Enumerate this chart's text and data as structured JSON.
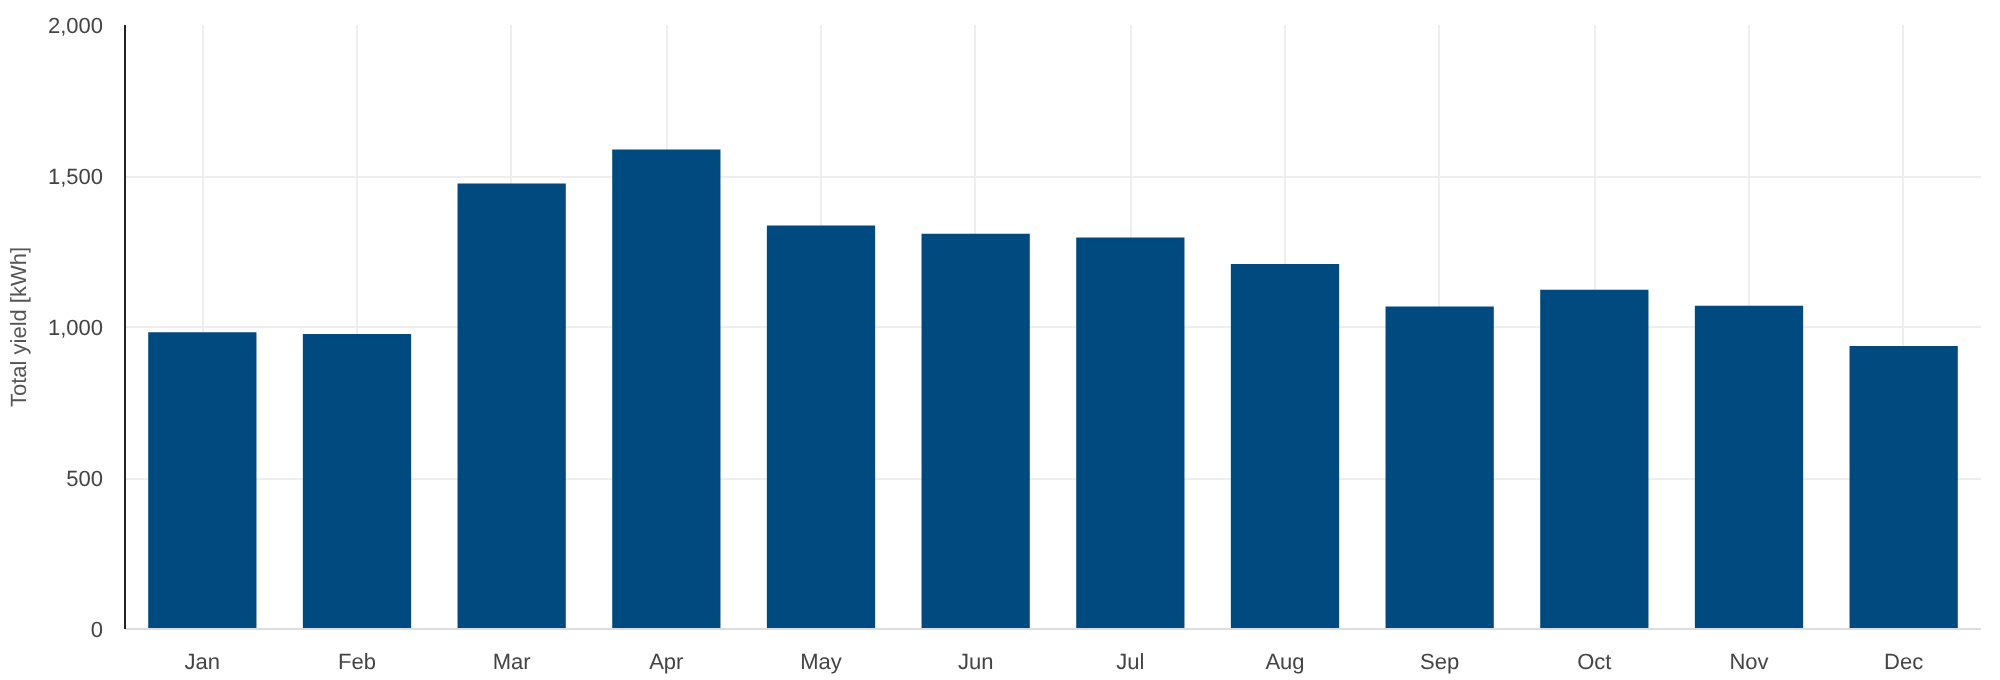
{
  "chart_data": {
    "type": "bar",
    "ylabel": "Total yield [kWh]",
    "categories": [
      "Jan",
      "Feb",
      "Mar",
      "Apr",
      "May",
      "Jun",
      "Jul",
      "Aug",
      "Sep",
      "Oct",
      "Nov",
      "Dec"
    ],
    "values": [
      983,
      977,
      1475,
      1588,
      1336,
      1309,
      1296,
      1209,
      1068,
      1123,
      1070,
      937
    ],
    "color": "#004a7f",
    "ylim": [
      0,
      2000
    ],
    "yticks": [
      0,
      {
        "value": 500,
        "label": "500"
      },
      {
        "value": 1000,
        "label": "1,000"
      },
      {
        "value": 1500,
        "label": "1,500"
      },
      {
        "value": 2000,
        "label": "2,000"
      }
    ],
    "grid": true
  }
}
